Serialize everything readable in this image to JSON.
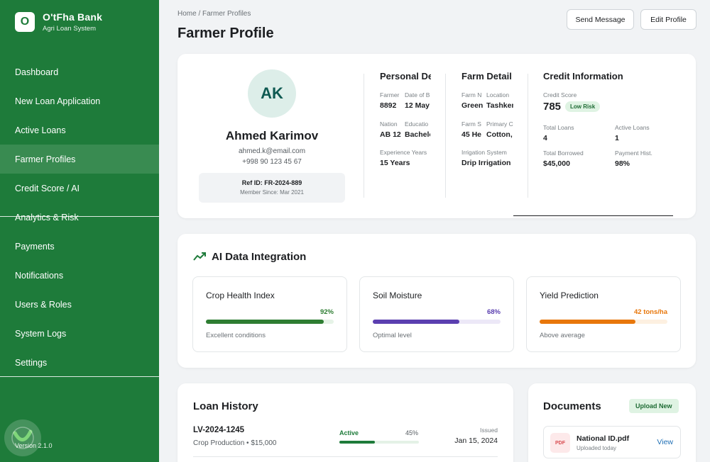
{
  "brand": {
    "logo_letter": "O",
    "name": "O'tFha Bank",
    "subtitle": "Agri Loan System"
  },
  "sidebar": {
    "items": [
      {
        "label": "Dashboard"
      },
      {
        "label": "New Loan Application"
      },
      {
        "label": "Active Loans"
      },
      {
        "label": "Farmer Profiles",
        "active": true
      },
      {
        "label": "Credit Score / AI"
      },
      {
        "label": "Analytics & Risk"
      },
      {
        "label": "Payments"
      },
      {
        "label": "Notifications"
      },
      {
        "label": "Users & Roles"
      },
      {
        "label": "System Logs"
      },
      {
        "label": "Settings"
      }
    ],
    "version": "Version 2.1.0"
  },
  "header": {
    "breadcrumb": "Home / Farmer Profiles",
    "title": "Farmer Profile",
    "send_message": "Send Message",
    "edit_profile": "Edit Profile"
  },
  "profile": {
    "initials": "AK",
    "name": "Ahmed Karimov",
    "email": "ahmed.k@email.com",
    "phone": "+998 90 123 45 67",
    "ref_id": "Ref ID: FR-2024-889",
    "member_since": "Member Since: Mar 2021"
  },
  "personal": {
    "title": "Personal De",
    "farmer_lbl": "Farmer",
    "farmer_val": "8892",
    "dob_lbl": "Date of B",
    "dob_val": "12 May",
    "nation_lbl": "Nation",
    "nation_val": "AB 12",
    "edu_lbl": "Educatio",
    "edu_val": "Bachelo",
    "exp_lbl": "Experience Years",
    "exp_val": "15 Years"
  },
  "farm": {
    "title": "Farm Detail",
    "fn_lbl": "Farm N",
    "fn_val": "Green",
    "loc_lbl": "Location",
    "loc_val": "Tashken",
    "fs_lbl": "Farm S",
    "fs_val": "45 He",
    "crop_lbl": "Primary C",
    "crop_val": "Cotton,",
    "irr_lbl": "Irrigation System",
    "irr_val": "Drip Irrigation"
  },
  "credit": {
    "title": "Credit Information",
    "score_lbl": "Credit Score",
    "score": "785",
    "risk": "Low Risk",
    "total_loans_lbl": "Total Loans",
    "total_loans": "4",
    "active_loans_lbl": "Active Loans",
    "active_loans": "1",
    "borrowed_lbl": "Total Borrowed",
    "borrowed": "$45,000",
    "payment_lbl": "Payment Hist.",
    "payment": "98%"
  },
  "ai": {
    "title": "AI Data Integration",
    "metrics": [
      {
        "name": "Crop Health Index",
        "value": "92%",
        "fraction": 0.92,
        "note": "Excellent conditions",
        "color": "#2e7d32",
        "track": "#e6f3e7"
      },
      {
        "name": "Soil Moisture",
        "value": "68%",
        "fraction": 0.68,
        "note": "Optimal level",
        "color": "#5b3fb0",
        "track": "#ece8f7"
      },
      {
        "name": "Yield Prediction",
        "value": "42 tons/ha",
        "fraction": 0.75,
        "note": "Above average",
        "color": "#e8770b",
        "track": "#fdf0e1"
      }
    ]
  },
  "loans": {
    "title": "Loan History",
    "rows": [
      {
        "id": "LV-2024-1245",
        "desc": "Crop Production • $15,000",
        "status": "Active",
        "pct": "45%",
        "fraction": 0.45,
        "issued_lbl": "Issued",
        "date": "Jan 15, 2024"
      }
    ]
  },
  "documents": {
    "title": "Documents",
    "upload": "Upload New",
    "items": [
      {
        "type": "PDF",
        "name": "National ID.pdf",
        "sub": "Uploaded today",
        "action": "View"
      }
    ]
  }
}
